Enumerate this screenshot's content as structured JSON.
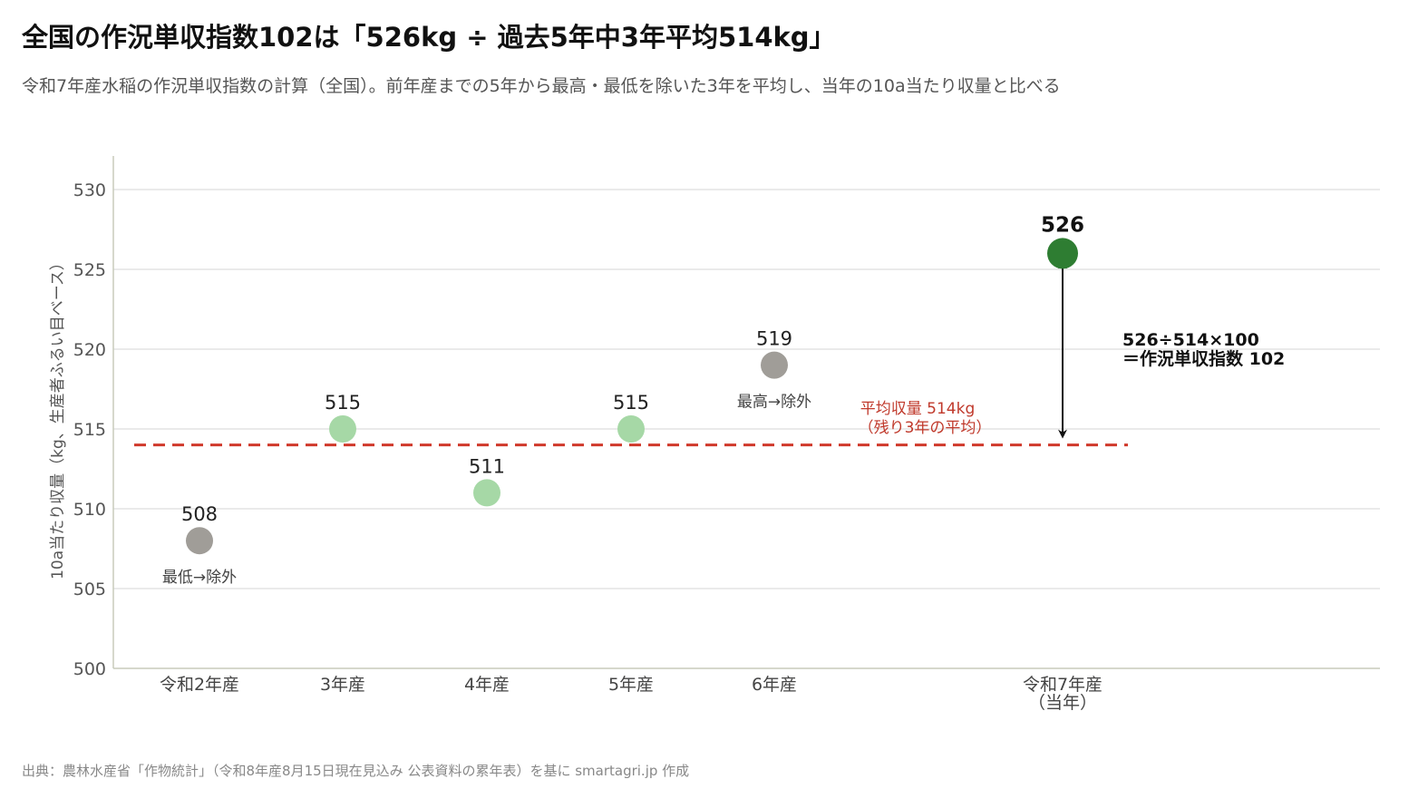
{
  "header": {
    "title": "全国の作況単収指数102は「526kg ÷ 過去5年中3年平均514kg」",
    "subtitle": "令和7年産水稲の作況単収指数の計算（全国）。前年産までの5年から最高・最低を除いた3年を平均し、当年の10a当たり収量と比べる"
  },
  "footer": {
    "source": "出典：農林水産省「作物統計」（令和8年産8月15日現在見込み 公表資料の累年表）を基に smartagri.jp 作成"
  },
  "colors": {
    "excluded": "#a09d98",
    "included": "#a6d8a6",
    "current": "#2e7d32",
    "reference": "#d0392b",
    "grid": "#e3e3e3",
    "axis": "#c8cbbb"
  },
  "chart_data": {
    "type": "scatter",
    "ylabel": "10a当たり収量（kg、生産者ふるい目ベース）",
    "ylim": [
      500,
      530
    ],
    "yticks": [
      500,
      505,
      510,
      515,
      520,
      525,
      530
    ],
    "grid": true,
    "points": [
      {
        "category": "令和2年産",
        "value": 508,
        "label": "508",
        "note": "最低→除外",
        "status": "excluded"
      },
      {
        "category": "3年産",
        "value": 515,
        "label": "515",
        "note": "",
        "status": "included"
      },
      {
        "category": "4年産",
        "value": 511,
        "label": "511",
        "note": "",
        "status": "included"
      },
      {
        "category": "5年産",
        "value": 515,
        "label": "515",
        "note": "",
        "status": "included"
      },
      {
        "category": "6年産",
        "value": 519,
        "label": "519",
        "note": "最高→除外",
        "status": "excluded"
      },
      {
        "category": "令和7年産\n（当年）",
        "value": 526,
        "label": "526",
        "note": "",
        "status": "current"
      }
    ],
    "reference_line": {
      "value": 514,
      "label_line1": "平均収量 514kg",
      "label_line2": "（残り3年の平均）"
    },
    "annotation": {
      "line1": "526÷514×100",
      "line2": "＝作況単収指数 102"
    }
  }
}
